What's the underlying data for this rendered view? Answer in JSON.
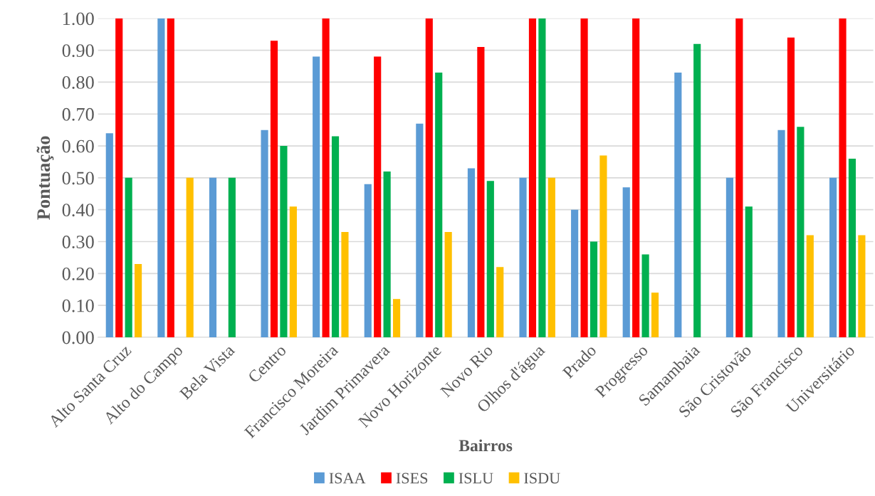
{
  "chart_data": {
    "type": "bar",
    "xlabel": "Bairros",
    "ylabel": "Pontuação",
    "categories": [
      "Alto Santa Cruz",
      "Alto do Campo",
      "Bela Vista",
      "Centro",
      "Francisco Moreira",
      "Jardim Primavera",
      "Novo Horizonte",
      "Novo Rio",
      "Olhos d'água",
      "Prado",
      "Progresso",
      "Samambaia",
      "São Cristovão",
      "São Francisco",
      "Universitário"
    ],
    "series": [
      {
        "name": "ISAA",
        "color": "#5b9bd5",
        "values": [
          0.64,
          1.0,
          0.5,
          0.65,
          0.88,
          0.48,
          0.67,
          0.53,
          0.5,
          0.4,
          0.47,
          0.83,
          0.5,
          0.65,
          0.5
        ]
      },
      {
        "name": "ISES",
        "color": "#ff0000",
        "values": [
          1.0,
          1.0,
          0,
          0.93,
          1.0,
          0.88,
          1.0,
          0.91,
          1.0,
          1.0,
          1.0,
          0,
          1.0,
          0.94,
          1.0
        ]
      },
      {
        "name": "ISLU",
        "color": "#00b050",
        "values": [
          0.5,
          0,
          0.5,
          0.6,
          0.63,
          0.52,
          0.83,
          0.49,
          1.0,
          0.3,
          0.26,
          0.92,
          0.41,
          0.66,
          0.56
        ]
      },
      {
        "name": "ISDU",
        "color": "#ffc000",
        "values": [
          0.23,
          0.5,
          0,
          0.41,
          0.33,
          0.12,
          0.33,
          0.22,
          0.5,
          0.57,
          0.14,
          0,
          0,
          0.32,
          0.32
        ]
      }
    ],
    "ylim": [
      0,
      1.0
    ],
    "yticks": [
      {
        "value": 0,
        "label": "0.00"
      },
      {
        "value": 0.1,
        "label": "0.10"
      },
      {
        "value": 0.2,
        "label": "0.20"
      },
      {
        "value": 0.3,
        "label": "0.30"
      },
      {
        "value": 0.4,
        "label": "0.40"
      },
      {
        "value": 0.5,
        "label": "0.50"
      },
      {
        "value": 0.6,
        "label": "0.60"
      },
      {
        "value": 0.7,
        "label": "0.70"
      },
      {
        "value": 0.8,
        "label": "0.80"
      },
      {
        "value": 0.9,
        "label": "0.90"
      },
      {
        "value": 1.0,
        "label": "1.00"
      }
    ],
    "grid": "y",
    "legend": "bottom"
  }
}
